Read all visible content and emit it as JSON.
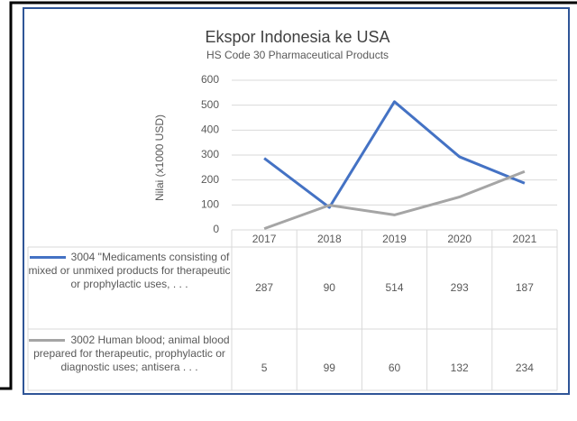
{
  "chart_data": {
    "type": "line",
    "title": "Ekspor Indonesia ke USA",
    "subtitle": "HS Code 30 Pharmaceutical Products",
    "y_label": "Nilai (x1000 USD)",
    "categories": [
      "2017",
      "2018",
      "2019",
      "2020",
      "2021"
    ],
    "series": [
      {
        "name": "3004 \"Medicaments consisting of mixed or unmixed products for therapeutic or prophylactic uses, . . .",
        "color": "#4472c4",
        "values": [
          287,
          90,
          514,
          293,
          187
        ]
      },
      {
        "name": "3002 Human blood; animal blood prepared for therapeutic, prophylactic or diagnostic uses; antisera . . .",
        "color": "#a5a5a5",
        "values": [
          5,
          99,
          60,
          132,
          234
        ]
      }
    ],
    "ylim": [
      0,
      600
    ],
    "yticks": [
      0,
      100,
      200,
      300,
      400,
      500,
      600
    ],
    "grid": true
  }
}
